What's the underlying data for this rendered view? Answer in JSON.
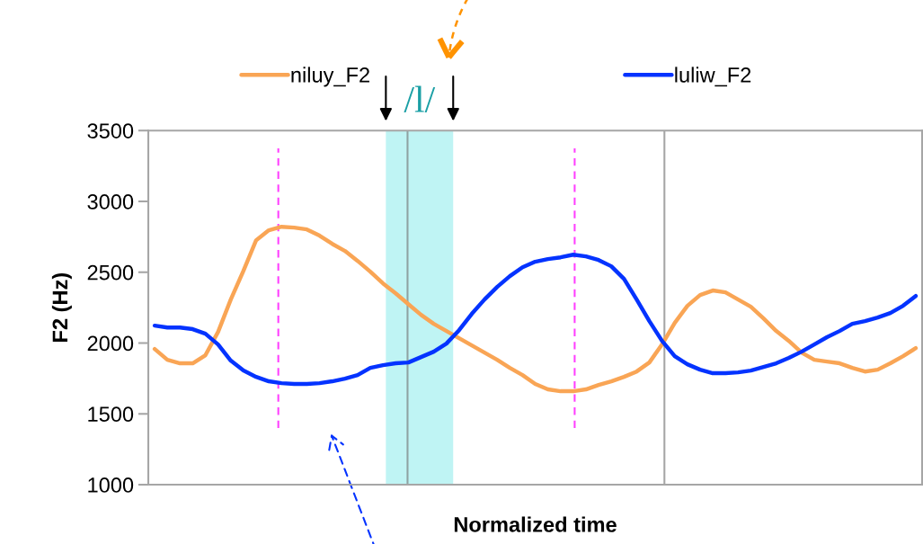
{
  "chart_data": {
    "type": "line",
    "xlabel": "Normalized time",
    "ylabel": "F2 (Hz)",
    "categories": [
      null,
      null,
      null,
      null,
      null,
      null,
      null,
      null,
      null,
      null,
      null,
      null,
      null,
      null,
      null,
      null,
      null,
      null,
      null,
      null,
      null,
      null,
      null,
      null,
      null,
      null,
      null,
      null,
      null,
      null,
      null,
      null,
      null,
      null,
      null,
      null,
      null,
      null,
      null,
      null,
      null,
      null,
      null,
      null,
      null,
      null,
      null,
      null,
      null,
      null,
      null,
      null,
      null,
      null,
      null,
      null,
      null,
      null,
      null,
      null,
      null
    ],
    "ylim": [
      1000,
      3500
    ],
    "yticks": [
      1000,
      1500,
      2000,
      2500,
      3000,
      3500
    ],
    "grid": false,
    "legend": "top",
    "marker": "none",
    "line_style": "solid",
    "series": [
      {
        "name": "niluy_F2",
        "color": "#f9a555",
        "values": [
          1958,
          1882,
          1857,
          1857,
          1914,
          2079,
          2307,
          2510,
          2726,
          2796,
          2821,
          2815,
          2802,
          2758,
          2700,
          2650,
          2580,
          2504,
          2421,
          2351,
          2275,
          2199,
          2136,
          2085,
          2034,
          1983,
          1933,
          1882,
          1825,
          1774,
          1711,
          1673,
          1660,
          1660,
          1673,
          1704,
          1730,
          1761,
          1799,
          1863,
          1990,
          2142,
          2263,
          2339,
          2371,
          2358,
          2307,
          2256,
          2174,
          2085,
          2015,
          1933,
          1882,
          1869,
          1857,
          1825,
          1799,
          1812,
          1857,
          1907,
          1964
        ]
      },
      {
        "name": "luliw_F2",
        "color": "#0433ff",
        "values": [
          2123,
          2110,
          2110,
          2098,
          2066,
          1990,
          1876,
          1806,
          1761,
          1730,
          1717,
          1711,
          1711,
          1717,
          1730,
          1749,
          1774,
          1825,
          1844,
          1857,
          1863,
          1901,
          1939,
          1996,
          2091,
          2206,
          2307,
          2396,
          2472,
          2535,
          2574,
          2593,
          2605,
          2624,
          2612,
          2586,
          2542,
          2453,
          2307,
          2155,
          2015,
          1907,
          1850,
          1812,
          1787,
          1787,
          1793,
          1806,
          1831,
          1857,
          1895,
          1939,
          1990,
          2041,
          2085,
          2136,
          2155,
          2180,
          2212,
          2263,
          2332
        ]
      }
    ],
    "annotations": [
      "/l/"
    ]
  }
}
